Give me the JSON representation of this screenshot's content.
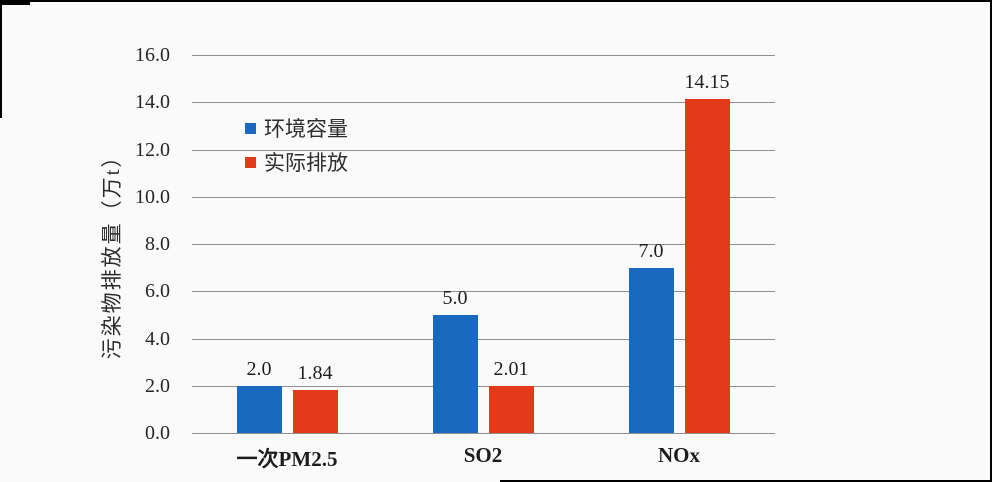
{
  "page": {
    "background_color": "#fbfafa",
    "frame_border_color": "#000000"
  },
  "chart_data": {
    "type": "bar",
    "title": "",
    "xlabel": "",
    "ylabel": "污染物排放量（万t）",
    "categories": [
      "一次PM2.5",
      "SO2",
      "NOx"
    ],
    "series": [
      {
        "name": "环境容量",
        "color": "#1969be",
        "values": [
          2.0,
          5.0,
          7.0
        ],
        "labels": [
          "2.0",
          "5.0",
          "7.0"
        ]
      },
      {
        "name": "实际排放",
        "color": "#e23a1b",
        "values": [
          1.84,
          2.01,
          14.15
        ],
        "labels": [
          "1.84",
          "2.01",
          "14.15"
        ]
      }
    ],
    "ylim": [
      0,
      16
    ],
    "ytick_step": 2,
    "yticks": [
      "0.0",
      "2.0",
      "4.0",
      "6.0",
      "8.0",
      "10.0",
      "12.0",
      "14.0",
      "16.0"
    ],
    "grid": true,
    "gridline_color": "#8f8f8f",
    "legend_position": "upper-left-inside"
  }
}
